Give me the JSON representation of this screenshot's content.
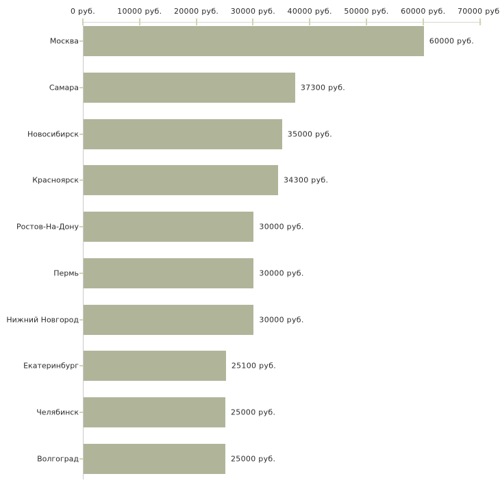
{
  "chart_data": {
    "type": "bar",
    "orientation": "horizontal",
    "title": "",
    "xlabel": "",
    "ylabel": "",
    "unit": "руб.",
    "categories": [
      "Москва",
      "Самара",
      "Новосибирск",
      "Красноярск",
      "Ростов-На-Дону",
      "Пермь",
      "Нижний Новгород",
      "Екатеринбург",
      "Челябинск",
      "Волгоград"
    ],
    "values": [
      60000,
      37300,
      35000,
      34300,
      30000,
      30000,
      30000,
      25100,
      25000,
      25000
    ],
    "value_labels": [
      "60000 руб.",
      "37300 руб.",
      "35000 руб.",
      "34300 руб.",
      "30000 руб.",
      "30000 руб.",
      "30000 руб.",
      "25100 руб.",
      "25000 руб.",
      "25000 руб."
    ],
    "x_axis": {
      "position": "top",
      "min": 0,
      "max": 70000,
      "tick_values": [
        0,
        10000,
        20000,
        30000,
        40000,
        50000,
        60000,
        70000
      ],
      "tick_labels": [
        "0 руб.",
        "10000 руб.",
        "20000 руб.",
        "30000 руб.",
        "40000 руб.",
        "50000 руб.",
        "60000 руб.",
        "70000 руб."
      ]
    },
    "grid": false,
    "legend": false,
    "colors": {
      "bar_fill": "#b0b59a",
      "h_axis_line": "#d6d6cf",
      "v_axis_line": "#c9c9c9",
      "tick_mark": "#d2d4ae",
      "text": "#2b2b2b",
      "background": "#ffffff"
    }
  }
}
